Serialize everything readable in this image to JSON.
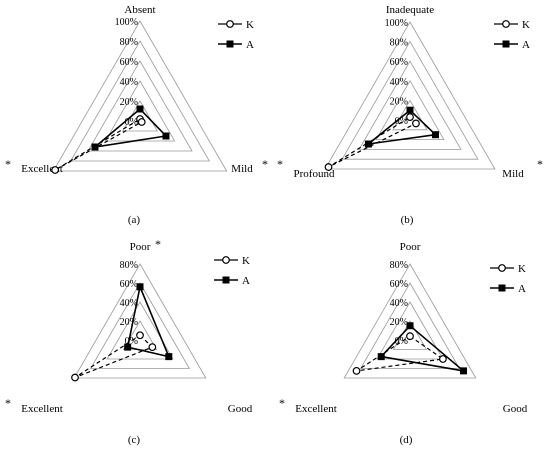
{
  "chart_data": [
    {
      "type": "radar",
      "caption": "(a)",
      "axes": [
        "Absent",
        "Mild",
        "Excellent"
      ],
      "axis_stars": [
        false,
        true,
        true
      ],
      "rticks": [
        "0%",
        "20%",
        "40%",
        "60%",
        "80%",
        "100%"
      ],
      "rmax": 100,
      "legend": [
        "K",
        "A"
      ],
      "series": [
        {
          "name": "K",
          "values": [
            2,
            2,
            98
          ]
        },
        {
          "name": "A",
          "values": [
            12,
            30,
            52
          ]
        }
      ]
    },
    {
      "type": "radar",
      "caption": "(b)",
      "axes": [
        "Inadequate",
        "Mild",
        "Profound"
      ],
      "axis_stars": [
        false,
        true,
        true
      ],
      "rticks": [
        "0%",
        "20%",
        "40%",
        "60%",
        "80%",
        "100%"
      ],
      "rmax": 100,
      "legend": [
        "K",
        "A"
      ],
      "series": [
        {
          "name": "K",
          "values": [
            3,
            7,
            96
          ]
        },
        {
          "name": "A",
          "values": [
            10,
            30,
            49
          ]
        }
      ]
    },
    {
      "type": "radar",
      "caption": "(c)",
      "axes": [
        "Poor",
        "Good",
        "Excellent"
      ],
      "axis_stars": [
        true,
        false,
        true
      ],
      "rticks": [
        "0%",
        "20%",
        "40%",
        "60%",
        "80%"
      ],
      "rmax": 80,
      "legend": [
        "K",
        "A"
      ],
      "series": [
        {
          "name": "K",
          "values": [
            5,
            15,
            79
          ]
        },
        {
          "name": "A",
          "values": [
            56,
            35,
            15
          ]
        }
      ]
    },
    {
      "type": "radar",
      "caption": "(d)",
      "axes": [
        "Poor",
        "Good",
        "Excellent"
      ],
      "axis_stars": [
        false,
        false,
        true
      ],
      "rticks": [
        "0%",
        "20%",
        "40%",
        "60%",
        "80%"
      ],
      "rmax": 80,
      "legend": [
        "K",
        "A"
      ],
      "series": [
        {
          "name": "K",
          "values": [
            4,
            40,
            65
          ]
        },
        {
          "name": "A",
          "values": [
            15,
            65,
            35
          ]
        }
      ]
    }
  ],
  "star_symbol": "*"
}
